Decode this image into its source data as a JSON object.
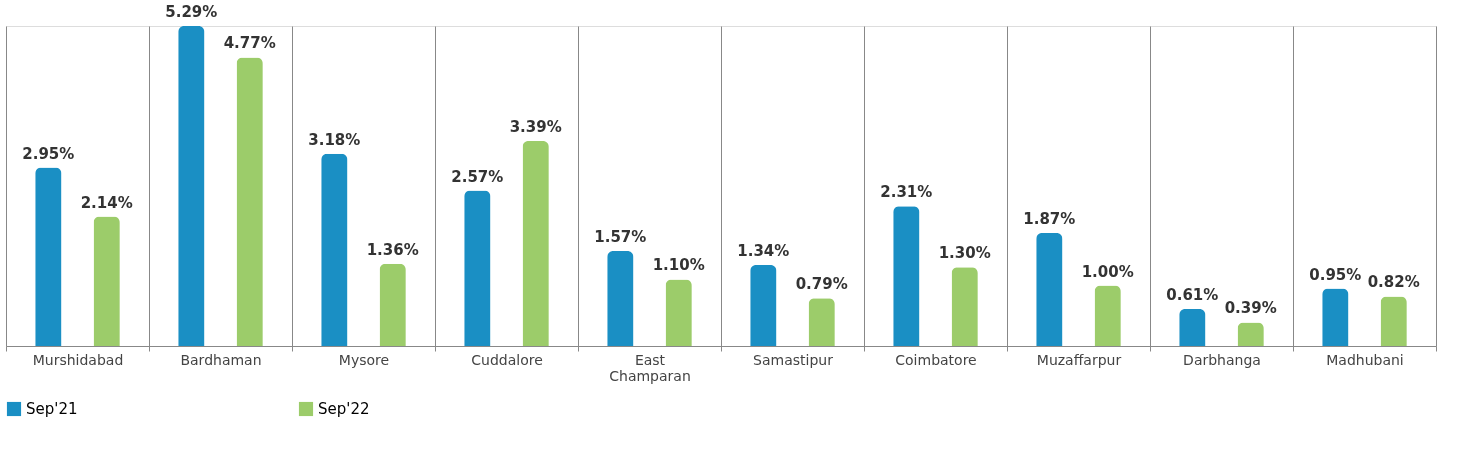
{
  "chart_data": {
    "type": "bar",
    "categories": [
      "Murshidabad",
      "Bardhaman",
      "Mysore",
      "Cuddalore",
      "East Champaran",
      "Samastipur",
      "Coimbatore",
      "Muzaffarpur",
      "Darbhanga",
      "Madhubani"
    ],
    "series": [
      {
        "name": "Sep'21",
        "color": "#1a8fc4",
        "values": [
          2.95,
          5.29,
          3.18,
          2.57,
          1.57,
          1.34,
          2.31,
          1.87,
          0.61,
          0.95
        ],
        "value_labels": [
          "2.95%",
          "5.29%",
          "3.18%",
          "2.57%",
          "1.57%",
          "1.34%",
          "2.31%",
          "1.87%",
          "0.61%",
          "0.95%"
        ]
      },
      {
        "name": "Sep'22",
        "color": "#9ccc6a",
        "values": [
          2.14,
          4.77,
          1.36,
          3.39,
          1.1,
          0.79,
          1.3,
          1.0,
          0.39,
          0.82
        ],
        "value_labels": [
          "2.14%",
          "4.77%",
          "1.36%",
          "3.39%",
          "1.10%",
          "0.79%",
          "1.30%",
          "1.00%",
          "0.39%",
          "0.82%"
        ]
      }
    ],
    "grid": "x",
    "legend": "bottom",
    "tick_labels": "x"
  }
}
